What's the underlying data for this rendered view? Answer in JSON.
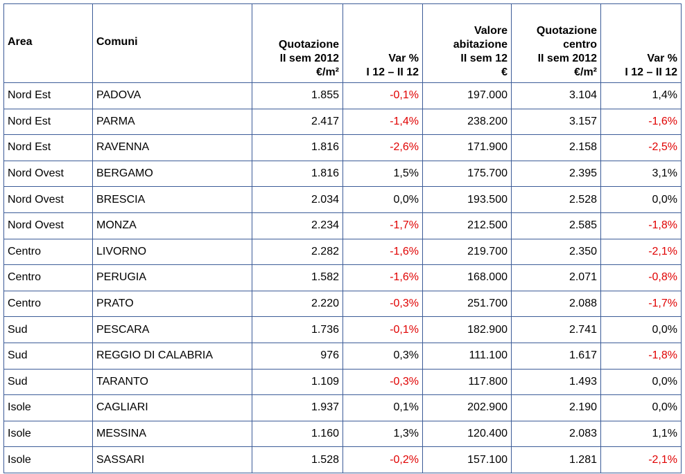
{
  "table": {
    "negative_color": "#e00000",
    "header": [
      [
        "Area"
      ],
      [
        "Comuni"
      ],
      [
        "Quotazione",
        "II sem 2012",
        "€/m²"
      ],
      [
        "Var %",
        "I 12 – II 12"
      ],
      [
        "Valore",
        "abitazione",
        "II sem 12",
        "€"
      ],
      [
        "Quotazione",
        "centro",
        "II sem 2012",
        "€/m²"
      ],
      [
        "Var %",
        "I 12 – II 12"
      ]
    ],
    "rows": [
      [
        "Nord Est",
        "PADOVA",
        "1.855",
        "-0,1%",
        "197.000",
        "3.104",
        "1,4%"
      ],
      [
        "Nord Est",
        "PARMA",
        "2.417",
        "-1,4%",
        "238.200",
        "3.157",
        "-1,6%"
      ],
      [
        "Nord Est",
        "RAVENNA",
        "1.816",
        "-2,6%",
        "171.900",
        "2.158",
        "-2,5%"
      ],
      [
        "Nord Ovest",
        "BERGAMO",
        "1.816",
        "1,5%",
        "175.700",
        "2.395",
        "3,1%"
      ],
      [
        "Nord Ovest",
        "BRESCIA",
        "2.034",
        "0,0%",
        "193.500",
        "2.528",
        "0,0%"
      ],
      [
        "Nord Ovest",
        "MONZA",
        "2.234",
        "-1,7%",
        "212.500",
        "2.585",
        "-1,8%"
      ],
      [
        "Centro",
        "LIVORNO",
        "2.282",
        "-1,6%",
        "219.700",
        "2.350",
        "-2,1%"
      ],
      [
        "Centro",
        "PERUGIA",
        "1.582",
        "-1,6%",
        "168.000",
        "2.071",
        "-0,8%"
      ],
      [
        "Centro",
        "PRATO",
        "2.220",
        "-0,3%",
        "251.700",
        "2.088",
        "-1,7%"
      ],
      [
        "Sud",
        "PESCARA",
        "1.736",
        "-0,1%",
        "182.900",
        "2.741",
        "0,0%"
      ],
      [
        "Sud",
        "REGGIO DI CALABRIA",
        "976",
        "0,3%",
        "111.100",
        "1.617",
        "-1,8%"
      ],
      [
        "Sud",
        "TARANTO",
        "1.109",
        "-0,3%",
        "117.800",
        "1.493",
        "0,0%"
      ],
      [
        "Isole",
        "CAGLIARI",
        "1.937",
        "0,1%",
        "202.900",
        "2.190",
        "0,0%"
      ],
      [
        "Isole",
        "MESSINA",
        "1.160",
        "1,3%",
        "120.400",
        "2.083",
        "1,1%"
      ],
      [
        "Isole",
        "SASSARI",
        "1.528",
        "-0,2%",
        "157.100",
        "1.281",
        "-2,1%"
      ]
    ]
  }
}
